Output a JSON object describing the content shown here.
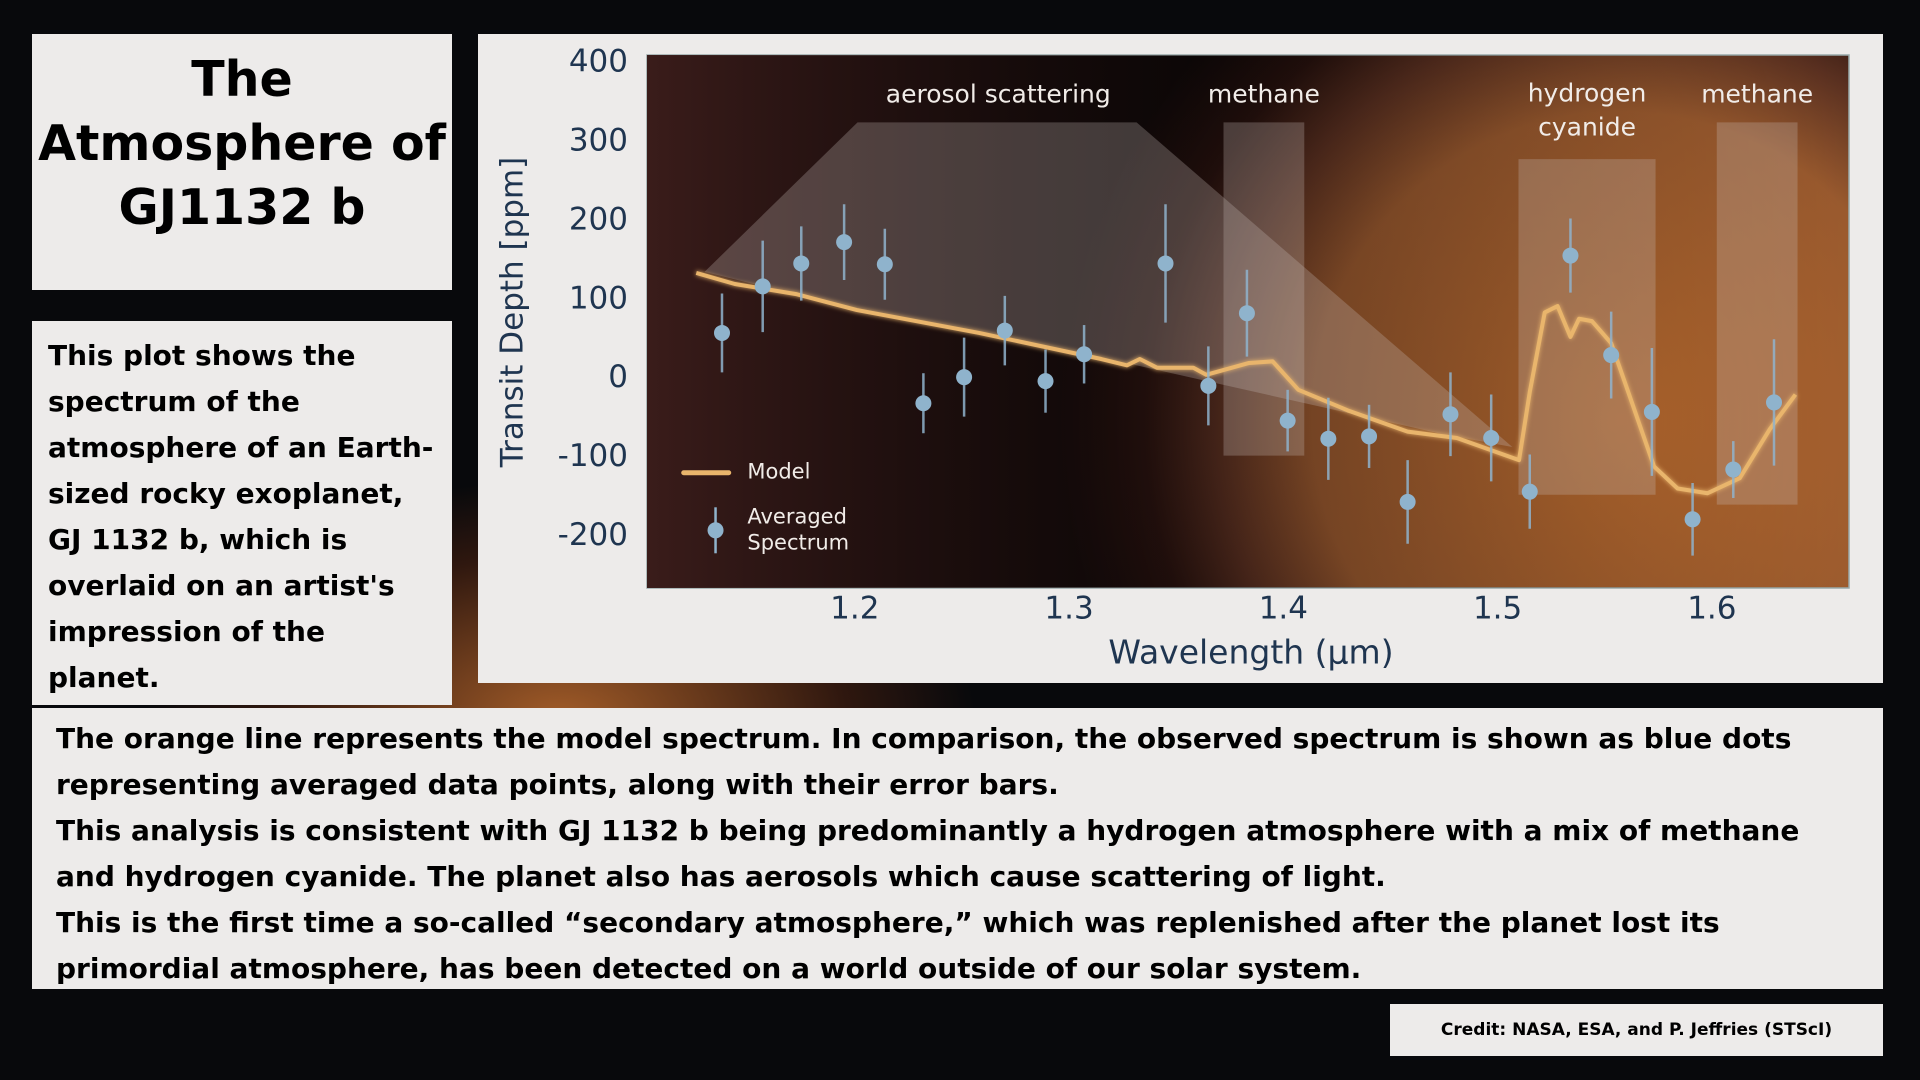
{
  "title": "The Atmosphere of GJ1132 b",
  "description": "This plot shows the spectrum of the atmosphere of an Earth-sized rocky exoplanet, GJ 1132 b, which is overlaid on an artist's impression of the planet.",
  "body": [
    "The orange line represents the model spectrum. In comparison, the observed spectrum is shown as blue dots representing averaged data points, along with their error bars.",
    "This analysis is consistent with GJ 1132 b being predominantly a hydrogen atmosphere with a mix of methane and hydrogen cyanide. The planet also has aerosols which cause scattering of light.",
    "This is the first time a so-called “secondary atmosphere,” which was replenished after the planet lost its primordial atmosphere, has been detected on a world outside of our solar system."
  ],
  "credit": "Credit: NASA, ESA, and P. Jeffries (STScI)",
  "chart_data": {
    "type": "line",
    "x_label": "Wavelength (µm)",
    "y_label": "Transit Depth [ppm]",
    "xlim": [
      1.103,
      1.664
    ],
    "ylim": [
      -265,
      410
    ],
    "xticks": [
      1.2,
      1.3,
      1.4,
      1.5,
      1.6
    ],
    "yticks": [
      -200,
      -100,
      0,
      100,
      200,
      300,
      400
    ],
    "annotations": [
      "aerosol scattering",
      "methane",
      "hydrogen cyanide",
      "methane"
    ],
    "series": [
      {
        "name": "Model",
        "color": "#e9b56c",
        "x": [
          1.126,
          1.144,
          1.173,
          1.201,
          1.258,
          1.315,
          1.327,
          1.333,
          1.341,
          1.358,
          1.364,
          1.384,
          1.395,
          1.407,
          1.43,
          1.458,
          1.481,
          1.51,
          1.515,
          1.522,
          1.528,
          1.534,
          1.538,
          1.544,
          1.553,
          1.561,
          1.573,
          1.584,
          1.598,
          1.613,
          1.627,
          1.639
        ],
        "values": [
          134,
          120,
          107,
          87,
          58,
          25,
          17,
          25,
          14,
          14,
          5,
          20,
          22,
          -14,
          -40,
          -67,
          -75,
          -103,
          -17,
          84,
          92,
          53,
          76,
          73,
          45,
          -17,
          -111,
          -139,
          -145,
          -126,
          -64,
          -20
        ]
      },
      {
        "name": "Averaged Spectrum",
        "color": "#8fb3cc",
        "x": [
          1.138,
          1.157,
          1.175,
          1.195,
          1.214,
          1.232,
          1.251,
          1.27,
          1.289,
          1.307,
          1.345,
          1.365,
          1.383,
          1.402,
          1.421,
          1.44,
          1.458,
          1.478,
          1.497,
          1.515,
          1.534,
          1.553,
          1.572,
          1.591,
          1.61,
          1.629
        ],
        "values": [
          58,
          117,
          146,
          173,
          145,
          -31,
          2,
          61,
          -3,
          31,
          146,
          -9,
          83,
          -53,
          -76,
          -73,
          -156,
          -45,
          -75,
          -143,
          156,
          30,
          -42,
          -178,
          -115,
          -30
        ],
        "errors": [
          50,
          58,
          47,
          48,
          45,
          38,
          50,
          44,
          40,
          37,
          75,
          50,
          55,
          39,
          52,
          40,
          53,
          53,
          55,
          47,
          47,
          55,
          81,
          46,
          36,
          80
        ]
      }
    ]
  }
}
